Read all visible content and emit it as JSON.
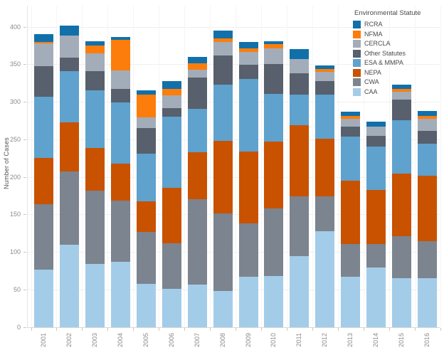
{
  "chart": {
    "y_axis_title": "Number of Cases",
    "legend_title": "Environmental Statute"
  },
  "chart_data": {
    "type": "bar",
    "variant": "stacked-vertical",
    "title": "",
    "xlabel": "",
    "ylabel": "Number of Cases",
    "grid": true,
    "ylim": [
      0,
      420
    ],
    "y_ticks": [
      0,
      50,
      100,
      150,
      200,
      250,
      300,
      350,
      400
    ],
    "categories": [
      "2001",
      "2002",
      "2003",
      "2004",
      "2005",
      "2006",
      "2007",
      "2008",
      "2009",
      "2010",
      "2011",
      "2012",
      "2013",
      "2014",
      "2015",
      "2016"
    ],
    "stack_order_note": "first series listed is the bottom of each stacked bar",
    "series": [
      {
        "name": "CAA",
        "color": "#a3cce9",
        "values": [
          77,
          110,
          84,
          87,
          58,
          51,
          57,
          48,
          67,
          68,
          95,
          128,
          67,
          80,
          65,
          65
        ]
      },
      {
        "name": "CWA",
        "color": "#7b848f",
        "values": [
          87,
          98,
          98,
          82,
          69,
          61,
          114,
          104,
          71,
          90,
          79,
          46,
          44,
          31,
          56,
          50
        ]
      },
      {
        "name": "NEPA",
        "color": "#c85200",
        "values": [
          62,
          65,
          57,
          49,
          41,
          74,
          62,
          96,
          96,
          89,
          95,
          77,
          84,
          72,
          84,
          87
        ]
      },
      {
        "name": "ESA & MMPA",
        "color": "#5fa2ce",
        "values": [
          81,
          68,
          77,
          82,
          63,
          95,
          58,
          75,
          97,
          64,
          41,
          59,
          59,
          58,
          71,
          43
        ]
      },
      {
        "name": "Other Statutes",
        "color": "#57606c",
        "values": [
          41,
          18,
          25,
          18,
          34,
          11,
          42,
          39,
          19,
          40,
          28,
          18,
          13,
          14,
          27,
          17
        ]
      },
      {
        "name": "CERCLA",
        "color": "#a3acb9",
        "values": [
          30,
          30,
          24,
          24,
          15,
          17,
          10,
          18,
          17,
          21,
          19,
          12,
          11,
          12,
          11,
          16
        ]
      },
      {
        "name": "NFMA",
        "color": "#fc7d0b",
        "values": [
          2,
          0,
          10,
          41,
          30,
          9,
          9,
          5,
          5,
          5,
          0,
          4,
          4,
          0,
          4,
          4
        ]
      },
      {
        "name": "RCRA",
        "color": "#1170aa",
        "values": [
          11,
          13,
          6,
          4,
          6,
          10,
          8,
          10,
          8,
          4,
          14,
          5,
          5,
          7,
          5,
          6
        ]
      }
    ],
    "totals": [
      391,
      402,
      381,
      387,
      316,
      328,
      360,
      395,
      380,
      381,
      371,
      349,
      287,
      274,
      323,
      288
    ],
    "legend": {
      "title": "Environmental Statute",
      "position": "top-right",
      "entries_top_to_bottom": [
        "RCRA",
        "NFMA",
        "CERCLA",
        "Other Statutes",
        "ESA & MMPA",
        "NEPA",
        "CWA",
        "CAA"
      ]
    }
  }
}
